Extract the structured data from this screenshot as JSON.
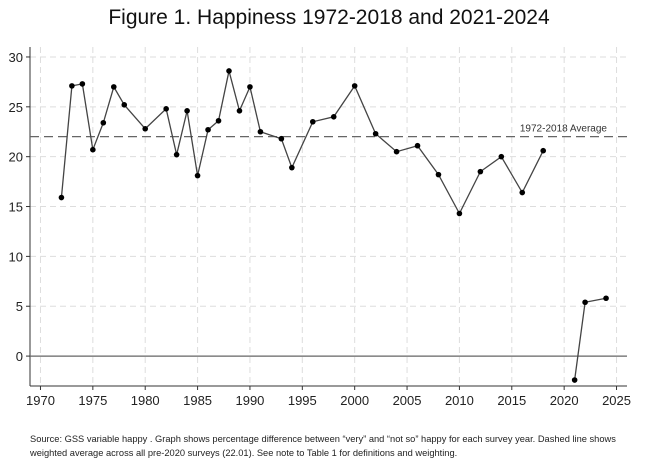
{
  "chart_data": {
    "type": "line",
    "title": "Figure 1.  Happiness 1972-2018 and 2021-2024",
    "xlabel": "",
    "ylabel": "",
    "xlim": [
      1969,
      2026
    ],
    "ylim": [
      -3,
      31
    ],
    "xticks": [
      1970,
      1975,
      1980,
      1985,
      1990,
      1995,
      2000,
      2005,
      2010,
      2015,
      2020,
      2025
    ],
    "yticks": [
      0,
      5,
      10,
      15,
      20,
      25,
      30
    ],
    "grid": true,
    "series": [
      {
        "x": [
          1972,
          1973,
          1974,
          1975,
          1976,
          1977,
          1978,
          1980,
          1982,
          1983,
          1984,
          1985,
          1986,
          1987,
          1988,
          1989,
          1990,
          1991,
          1993,
          1994,
          1996,
          1998,
          2000,
          2002,
          2004,
          2006,
          2008,
          2010,
          2012,
          2014,
          2016,
          2018
        ],
        "y": [
          15.9,
          27.1,
          27.3,
          20.7,
          23.4,
          27.0,
          25.2,
          22.8,
          24.8,
          20.2,
          24.6,
          18.1,
          22.7,
          23.6,
          28.6,
          24.6,
          27.0,
          22.5,
          21.8,
          18.9,
          23.5,
          24.0,
          27.1,
          22.3,
          20.5,
          21.1,
          18.2,
          14.3,
          18.5,
          20.0,
          16.4,
          20.6
        ]
      },
      {
        "x": [
          2021,
          2022,
          2024
        ],
        "y": [
          -2.4,
          5.4,
          5.8
        ]
      }
    ],
    "reference_lines": [
      {
        "y": 22.01,
        "style": "dashed",
        "label": "1972-2018 Average"
      },
      {
        "y": 0,
        "style": "solid"
      }
    ],
    "colors": {
      "line": "#444444",
      "marker": "#000000",
      "grid": "#dddddd"
    }
  },
  "note": "Source:  GSS variable happy . Graph shows percentage difference between “very” and “not so” happy for each survey year. Dashed line shows weighted average across all pre-2020 surveys (22.01).  See note to Table 1 for definitions and weighting."
}
